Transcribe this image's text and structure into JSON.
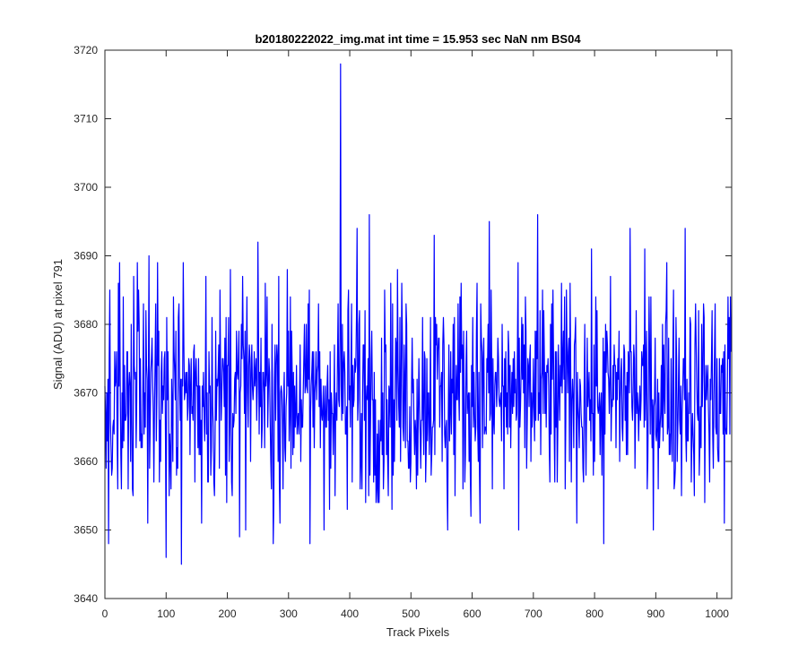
{
  "chart_data": {
    "type": "line",
    "title": "b20180222022_img.mat int time = 15.953 sec  NaN nm BS04",
    "xlabel": "Track Pixels",
    "ylabel": "Signal (ADU) at pixel 791",
    "xlim": [
      0,
      1024
    ],
    "ylim": [
      3640,
      3720
    ],
    "xticks": [
      0,
      100,
      200,
      300,
      400,
      500,
      600,
      700,
      800,
      900,
      1000
    ],
    "yticks": [
      3640,
      3650,
      3660,
      3670,
      3680,
      3690,
      3700,
      3710,
      3720
    ],
    "grid": false,
    "legend": "none",
    "series": [
      {
        "color": "#0000ff",
        "point_count": 1024,
        "noise_range": [
          3645,
          3696
        ],
        "baseline": 3670,
        "anchor_points": [
          [
            0,
            3671
          ],
          [
            8,
            3685
          ],
          [
            20,
            3663
          ],
          [
            30,
            3684
          ],
          [
            45,
            3656
          ],
          [
            55,
            3685
          ],
          [
            72,
            3690
          ],
          [
            80,
            3657
          ],
          [
            100,
            3646
          ],
          [
            112,
            3684
          ],
          [
            125,
            3645
          ],
          [
            128,
            3689
          ],
          [
            158,
            3651
          ],
          [
            165,
            3687
          ],
          [
            205,
            3688
          ],
          [
            220,
            3649
          ],
          [
            225,
            3687
          ],
          [
            262,
            3686
          ],
          [
            275,
            3648
          ],
          [
            303,
            3684
          ],
          [
            335,
            3648
          ],
          [
            345,
            3676
          ],
          [
            358,
            3650
          ],
          [
            368,
            3676
          ],
          [
            376,
            3655
          ],
          [
            385,
            3718
          ],
          [
            388,
            3680
          ],
          [
            396,
            3653
          ],
          [
            412,
            3694
          ],
          [
            420,
            3656
          ],
          [
            432,
            3696
          ],
          [
            448,
            3654
          ],
          [
            458,
            3676
          ],
          [
            478,
            3688
          ],
          [
            500,
            3660
          ],
          [
            538,
            3693
          ],
          [
            560,
            3650
          ],
          [
            582,
            3686
          ],
          [
            608,
            3686
          ],
          [
            628,
            3695
          ],
          [
            633,
            3656
          ],
          [
            652,
            3656
          ],
          [
            676,
            3650
          ],
          [
            700,
            3675
          ],
          [
            707,
            3696
          ],
          [
            735,
            3657
          ],
          [
            760,
            3686
          ],
          [
            815,
            3648
          ],
          [
            858,
            3694
          ],
          [
            886,
            3656
          ],
          [
            918,
            3689
          ],
          [
            948,
            3694
          ],
          [
            972,
            3662
          ],
          [
            994,
            3659
          ],
          [
            1012,
            3651
          ],
          [
            1018,
            3684
          ],
          [
            1023,
            3676
          ]
        ]
      }
    ]
  }
}
